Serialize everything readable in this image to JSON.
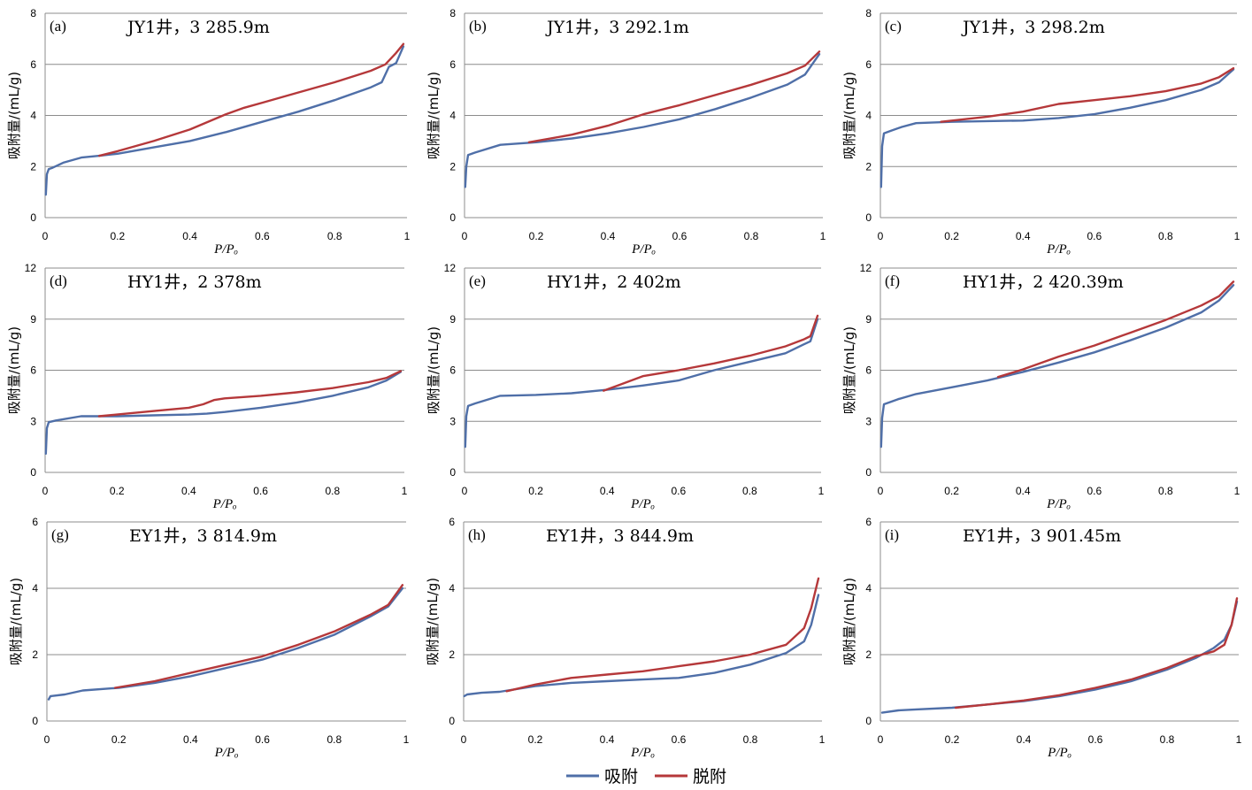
{
  "chart_data": [
    {
      "type": "line",
      "panel_label": "(a)",
      "title": "JY1井，3 285.9m",
      "xlabel": "P/Pₒ",
      "ylabel": "吸附量/(mL/g)",
      "xlim": [
        0,
        1
      ],
      "ylim": [
        0,
        8
      ],
      "xticks": [
        "0",
        "0.2",
        "0.4",
        "0.6",
        "0.8",
        "1"
      ],
      "yticks": [
        "0",
        "2",
        "4",
        "6",
        "8"
      ],
      "grid": "horizontal",
      "series": [
        {
          "name": "吸附",
          "color": "#4f6fa8",
          "x": [
            0.002,
            0.005,
            0.01,
            0.02,
            0.05,
            0.1,
            0.15,
            0.2,
            0.3,
            0.4,
            0.5,
            0.6,
            0.7,
            0.8,
            0.9,
            0.93,
            0.95,
            0.97,
            0.99
          ],
          "y": [
            0.9,
            1.7,
            1.9,
            1.95,
            2.15,
            2.35,
            2.42,
            2.5,
            2.75,
            3.0,
            3.35,
            3.75,
            4.15,
            4.6,
            5.1,
            5.3,
            5.9,
            6.05,
            6.7
          ]
        },
        {
          "name": "脱附",
          "color": "#b5383a",
          "x": [
            0.15,
            0.2,
            0.3,
            0.4,
            0.5,
            0.55,
            0.6,
            0.7,
            0.8,
            0.9,
            0.94,
            0.97,
            0.99
          ],
          "y": [
            2.42,
            2.6,
            3.0,
            3.45,
            4.05,
            4.3,
            4.5,
            4.9,
            5.3,
            5.75,
            6.0,
            6.45,
            6.8
          ]
        }
      ]
    },
    {
      "type": "line",
      "panel_label": "(b)",
      "title": "JY1井，3 292.1m",
      "xlabel": "P/Pₒ",
      "ylabel": "吸附量/(mL/g)",
      "xlim": [
        0,
        1
      ],
      "ylim": [
        0,
        8
      ],
      "xticks": [
        "0",
        "0.2",
        "0.4",
        "0.6",
        "0.8",
        "1"
      ],
      "yticks": [
        "0",
        "2",
        "4",
        "6",
        "8"
      ],
      "grid": "horizontal",
      "series": [
        {
          "name": "吸附",
          "color": "#4f6fa8",
          "x": [
            0.002,
            0.005,
            0.01,
            0.03,
            0.1,
            0.2,
            0.3,
            0.4,
            0.5,
            0.6,
            0.7,
            0.8,
            0.9,
            0.95,
            0.99
          ],
          "y": [
            1.2,
            2.0,
            2.45,
            2.55,
            2.85,
            2.95,
            3.1,
            3.3,
            3.55,
            3.85,
            4.25,
            4.7,
            5.2,
            5.6,
            6.4
          ]
        },
        {
          "name": "脱附",
          "color": "#b5383a",
          "x": [
            0.18,
            0.3,
            0.4,
            0.5,
            0.6,
            0.7,
            0.8,
            0.9,
            0.95,
            0.99
          ],
          "y": [
            2.95,
            3.25,
            3.6,
            4.05,
            4.4,
            4.8,
            5.2,
            5.65,
            5.95,
            6.5
          ]
        }
      ]
    },
    {
      "type": "line",
      "panel_label": "(c)",
      "title": "JY1井，3 298.2m",
      "xlabel": "P/Pₒ",
      "ylabel": "吸附量/(mL/g)",
      "xlim": [
        0,
        1
      ],
      "ylim": [
        0,
        8
      ],
      "xticks": [
        "0",
        "0.2",
        "0.4",
        "0.6",
        "0.8",
        "1"
      ],
      "yticks": [
        "0",
        "2",
        "4",
        "6",
        "8"
      ],
      "grid": "horizontal",
      "series": [
        {
          "name": "吸附",
          "color": "#4f6fa8",
          "x": [
            0.002,
            0.005,
            0.01,
            0.03,
            0.06,
            0.1,
            0.2,
            0.3,
            0.4,
            0.5,
            0.6,
            0.7,
            0.8,
            0.9,
            0.95,
            0.99
          ],
          "y": [
            1.2,
            2.8,
            3.3,
            3.4,
            3.55,
            3.7,
            3.75,
            3.78,
            3.8,
            3.9,
            4.05,
            4.3,
            4.6,
            5.0,
            5.3,
            5.8
          ]
        },
        {
          "name": "脱附",
          "color": "#b5383a",
          "x": [
            0.17,
            0.3,
            0.4,
            0.5,
            0.6,
            0.7,
            0.8,
            0.9,
            0.95,
            0.99
          ],
          "y": [
            3.75,
            3.95,
            4.15,
            4.45,
            4.6,
            4.75,
            4.95,
            5.25,
            5.5,
            5.85
          ]
        }
      ]
    },
    {
      "type": "line",
      "panel_label": "(d)",
      "title": "HY1井，2 378m",
      "xlabel": "P/Pₒ",
      "ylabel": "吸附量/(mL/g)",
      "xlim": [
        0,
        1
      ],
      "ylim": [
        0,
        12
      ],
      "xticks": [
        "0",
        "0.2",
        "0.4",
        "0.6",
        "0.8",
        "1"
      ],
      "yticks": [
        "0",
        "3",
        "6",
        "9",
        "12"
      ],
      "grid": "horizontal",
      "series": [
        {
          "name": "吸附",
          "color": "#4f6fa8",
          "x": [
            0.002,
            0.005,
            0.01,
            0.03,
            0.1,
            0.2,
            0.3,
            0.4,
            0.45,
            0.5,
            0.6,
            0.7,
            0.8,
            0.9,
            0.95,
            0.99
          ],
          "y": [
            1.1,
            2.6,
            2.95,
            3.05,
            3.3,
            3.3,
            3.35,
            3.4,
            3.45,
            3.55,
            3.8,
            4.1,
            4.5,
            5.0,
            5.4,
            5.9
          ]
        },
        {
          "name": "脱附",
          "color": "#b5383a",
          "x": [
            0.15,
            0.2,
            0.3,
            0.4,
            0.44,
            0.47,
            0.5,
            0.6,
            0.7,
            0.8,
            0.9,
            0.95,
            0.99
          ],
          "y": [
            3.3,
            3.4,
            3.6,
            3.8,
            4.0,
            4.25,
            4.35,
            4.5,
            4.7,
            4.95,
            5.3,
            5.55,
            5.95
          ]
        }
      ]
    },
    {
      "type": "line",
      "panel_label": "(e)",
      "title": "HY1井，2 402m",
      "xlabel": "P/Pₒ",
      "ylabel": "吸附量/(mL/g)",
      "xlim": [
        0,
        1
      ],
      "ylim": [
        0,
        12
      ],
      "xticks": [
        "0",
        "0.2",
        "0.4",
        "0.6",
        "0.8",
        "1"
      ],
      "yticks": [
        "0",
        "3",
        "6",
        "9",
        "12"
      ],
      "grid": "horizontal",
      "series": [
        {
          "name": "吸附",
          "color": "#4f6fa8",
          "x": [
            0.002,
            0.005,
            0.01,
            0.03,
            0.1,
            0.2,
            0.3,
            0.4,
            0.5,
            0.6,
            0.7,
            0.8,
            0.9,
            0.95,
            0.97,
            0.99
          ],
          "y": [
            1.5,
            3.3,
            3.9,
            4.05,
            4.5,
            4.55,
            4.65,
            4.85,
            5.1,
            5.4,
            6.0,
            6.5,
            7.0,
            7.5,
            7.7,
            9.0
          ]
        },
        {
          "name": "脱附",
          "color": "#b5383a",
          "x": [
            0.39,
            0.43,
            0.5,
            0.6,
            0.7,
            0.8,
            0.9,
            0.95,
            0.97,
            0.99
          ],
          "y": [
            4.8,
            5.1,
            5.65,
            6.0,
            6.4,
            6.85,
            7.4,
            7.8,
            8.0,
            9.2
          ]
        }
      ]
    },
    {
      "type": "line",
      "panel_label": "(f)",
      "title": "HY1井，2 420.39m",
      "xlabel": "P/Pₒ",
      "ylabel": "吸附量/(mL/g)",
      "xlim": [
        0,
        1
      ],
      "ylim": [
        0,
        12
      ],
      "xticks": [
        "0",
        "0.2",
        "0.4",
        "0.6",
        "0.8",
        "1"
      ],
      "yticks": [
        "0",
        "3",
        "6",
        "9",
        "12"
      ],
      "grid": "horizontal",
      "series": [
        {
          "name": "吸附",
          "color": "#4f6fa8",
          "x": [
            0.002,
            0.005,
            0.01,
            0.03,
            0.05,
            0.1,
            0.2,
            0.3,
            0.4,
            0.5,
            0.6,
            0.7,
            0.8,
            0.9,
            0.95,
            0.99
          ],
          "y": [
            1.5,
            3.2,
            4.0,
            4.15,
            4.3,
            4.6,
            5.0,
            5.4,
            5.9,
            6.45,
            7.05,
            7.75,
            8.5,
            9.4,
            10.1,
            11.0
          ]
        },
        {
          "name": "脱附",
          "color": "#b5383a",
          "x": [
            0.33,
            0.4,
            0.5,
            0.6,
            0.7,
            0.8,
            0.9,
            0.95,
            0.99
          ],
          "y": [
            5.6,
            6.05,
            6.8,
            7.45,
            8.2,
            8.95,
            9.8,
            10.35,
            11.2
          ]
        }
      ]
    },
    {
      "type": "line",
      "panel_label": "(g)",
      "title": "EY1井，3 814.9m",
      "xlabel": "P/Pₒ",
      "ylabel": "吸附量/(mL/g)",
      "xlim": [
        0,
        1
      ],
      "ylim": [
        0,
        6
      ],
      "xticks": [
        "0",
        "0.2",
        "0.4",
        "0.6",
        "0.8",
        "1"
      ],
      "yticks": [
        "0",
        "2",
        "4",
        "6"
      ],
      "grid": "horizontal",
      "series": [
        {
          "name": "吸附",
          "color": "#4f6fa8",
          "x": [
            0.005,
            0.01,
            0.05,
            0.1,
            0.2,
            0.3,
            0.4,
            0.5,
            0.6,
            0.7,
            0.8,
            0.9,
            0.95,
            0.99
          ],
          "y": [
            0.65,
            0.75,
            0.8,
            0.92,
            1.0,
            1.15,
            1.35,
            1.6,
            1.85,
            2.2,
            2.6,
            3.15,
            3.45,
            4.0
          ]
        },
        {
          "name": "脱附",
          "color": "#b5383a",
          "x": [
            0.19,
            0.3,
            0.4,
            0.5,
            0.6,
            0.7,
            0.8,
            0.9,
            0.95,
            0.99
          ],
          "y": [
            1.0,
            1.2,
            1.45,
            1.7,
            1.95,
            2.3,
            2.7,
            3.2,
            3.5,
            4.1
          ]
        }
      ]
    },
    {
      "type": "line",
      "panel_label": "(h)",
      "title": "EY1井，3 844.9m",
      "xlabel": "P/Pₒ",
      "ylabel": "吸附量/(mL/g)",
      "xlim": [
        0,
        1
      ],
      "ylim": [
        0,
        6
      ],
      "xticks": [
        "0",
        "0.2",
        "0.4",
        "0.6",
        "0.8",
        "1"
      ],
      "yticks": [
        "0",
        "2",
        "4",
        "6"
      ],
      "grid": "horizontal",
      "series": [
        {
          "name": "吸附",
          "color": "#4f6fa8",
          "x": [
            0.002,
            0.01,
            0.05,
            0.1,
            0.2,
            0.3,
            0.4,
            0.5,
            0.6,
            0.7,
            0.8,
            0.9,
            0.95,
            0.97,
            0.99
          ],
          "y": [
            0.75,
            0.8,
            0.85,
            0.88,
            1.05,
            1.15,
            1.2,
            1.25,
            1.3,
            1.45,
            1.7,
            2.05,
            2.4,
            2.9,
            3.8
          ]
        },
        {
          "name": "脱附",
          "color": "#b5383a",
          "x": [
            0.12,
            0.2,
            0.3,
            0.4,
            0.5,
            0.6,
            0.7,
            0.8,
            0.9,
            0.95,
            0.97,
            0.99
          ],
          "y": [
            0.9,
            1.1,
            1.3,
            1.4,
            1.5,
            1.65,
            1.8,
            2.0,
            2.3,
            2.8,
            3.4,
            4.3
          ]
        }
      ]
    },
    {
      "type": "line",
      "panel_label": "(i)",
      "title": "EY1井，3 901.45m",
      "xlabel": "P/Pₒ",
      "ylabel": "吸附量/(mL/g)",
      "xlim": [
        0,
        1
      ],
      "ylim": [
        0,
        6
      ],
      "xticks": [
        "0",
        "0.2",
        "0.4",
        "0.6",
        "0.8",
        "1"
      ],
      "yticks": [
        "0",
        "2",
        "4",
        "6"
      ],
      "grid": "horizontal",
      "series": [
        {
          "name": "吸附",
          "color": "#4f6fa8",
          "x": [
            0.005,
            0.05,
            0.1,
            0.2,
            0.3,
            0.4,
            0.5,
            0.6,
            0.7,
            0.8,
            0.88,
            0.93,
            0.96,
            0.98,
            0.995
          ],
          "y": [
            0.25,
            0.32,
            0.35,
            0.4,
            0.5,
            0.6,
            0.75,
            0.95,
            1.2,
            1.55,
            1.9,
            2.2,
            2.45,
            2.9,
            3.6
          ]
        },
        {
          "name": "脱附",
          "color": "#b5383a",
          "x": [
            0.21,
            0.3,
            0.4,
            0.5,
            0.6,
            0.7,
            0.8,
            0.88,
            0.93,
            0.96,
            0.98,
            0.995
          ],
          "y": [
            0.4,
            0.5,
            0.62,
            0.78,
            1.0,
            1.25,
            1.6,
            1.95,
            2.1,
            2.3,
            2.9,
            3.7
          ]
        }
      ]
    }
  ],
  "legend": {
    "items": [
      {
        "label": "吸附",
        "color": "#4f6fa8"
      },
      {
        "label": "脱附",
        "color": "#b5383a"
      }
    ],
    "placement": "bottom-center"
  }
}
